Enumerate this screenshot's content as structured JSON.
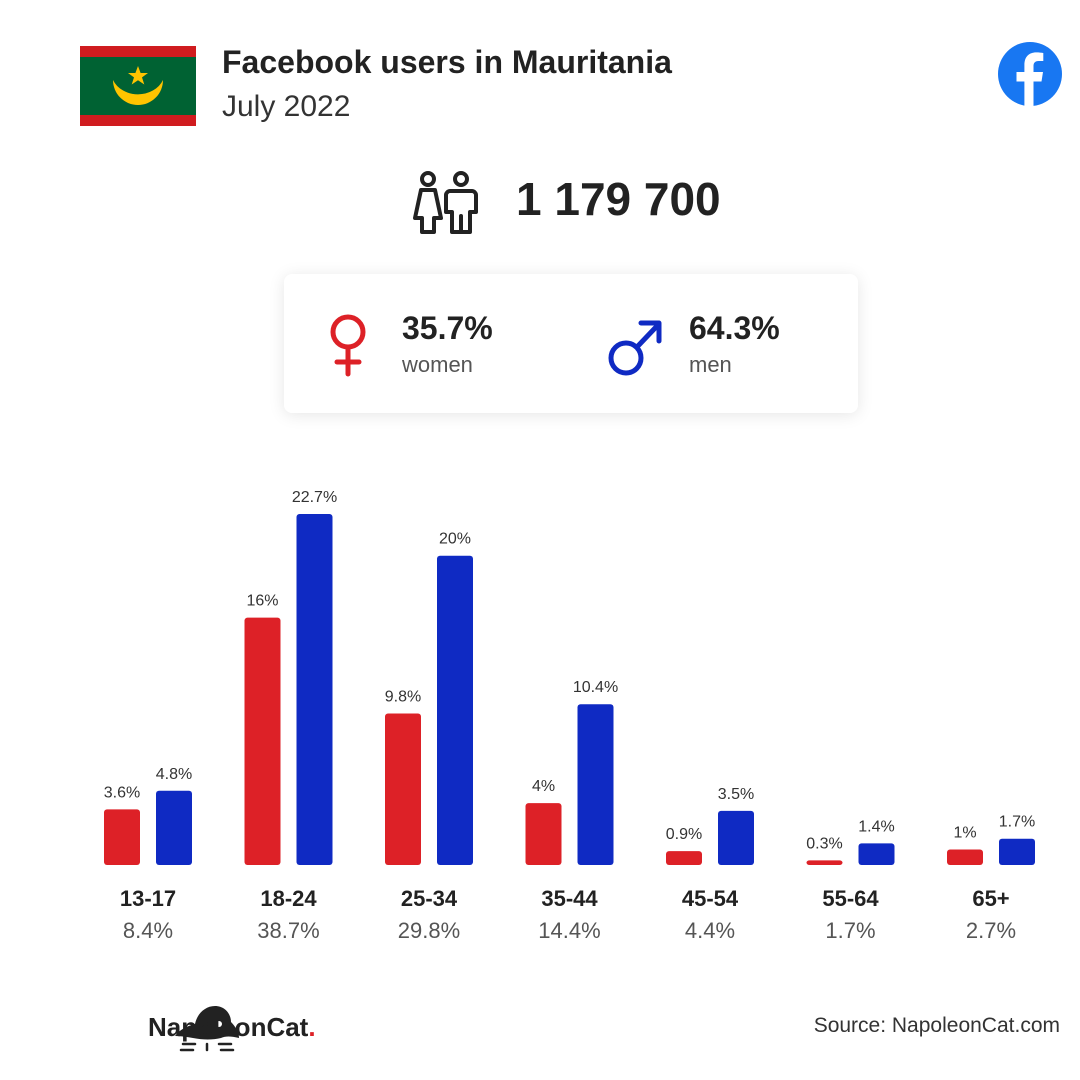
{
  "header": {
    "title": "Facebook users in Mauritania",
    "subtitle": "July 2022"
  },
  "icons": {
    "flag": "mauritania-flag-icon",
    "brand": "facebook-logo-icon",
    "total": "users-icon",
    "female": "female-symbol-icon",
    "male": "male-symbol-icon",
    "publisher": "napoleoncat-logo-icon"
  },
  "colors": {
    "women": "#dd2127",
    "men": "#0f2ac3",
    "facebook": "#1877f2",
    "flag_green": "#006233",
    "flag_red": "#d01c1f",
    "flag_gold": "#ffc400"
  },
  "summary": {
    "total_users": "1 179 700",
    "women_pct": "35.7%",
    "women_label": "women",
    "men_pct": "64.3%",
    "men_label": "men"
  },
  "chart_data": {
    "type": "bar",
    "categories": [
      "13-17",
      "18-24",
      "25-34",
      "35-44",
      "45-54",
      "55-64",
      "65+"
    ],
    "category_totals": [
      "8.4%",
      "38.7%",
      "29.8%",
      "14.4%",
      "4.4%",
      "1.7%",
      "2.7%"
    ],
    "series": [
      {
        "key": "women",
        "values": [
          3.6,
          16,
          9.8,
          4,
          0.9,
          0.3,
          1
        ],
        "labels": [
          "3.6%",
          "16%",
          "9.8%",
          "4%",
          "0.9%",
          "0.3%",
          "1%"
        ]
      },
      {
        "key": "men",
        "values": [
          4.8,
          22.7,
          20,
          10.4,
          3.5,
          1.4,
          1.7
        ],
        "labels": [
          "4.8%",
          "22.7%",
          "20%",
          "10.4%",
          "3.5%",
          "1.4%",
          "1.7%"
        ]
      }
    ],
    "ylim": [
      0,
      22.7
    ],
    "grid": false,
    "legend": "none"
  },
  "footer": {
    "brand_name": "NapoleonCat",
    "brand_dot": ".",
    "source": "Source: NapoleonCat.com"
  }
}
